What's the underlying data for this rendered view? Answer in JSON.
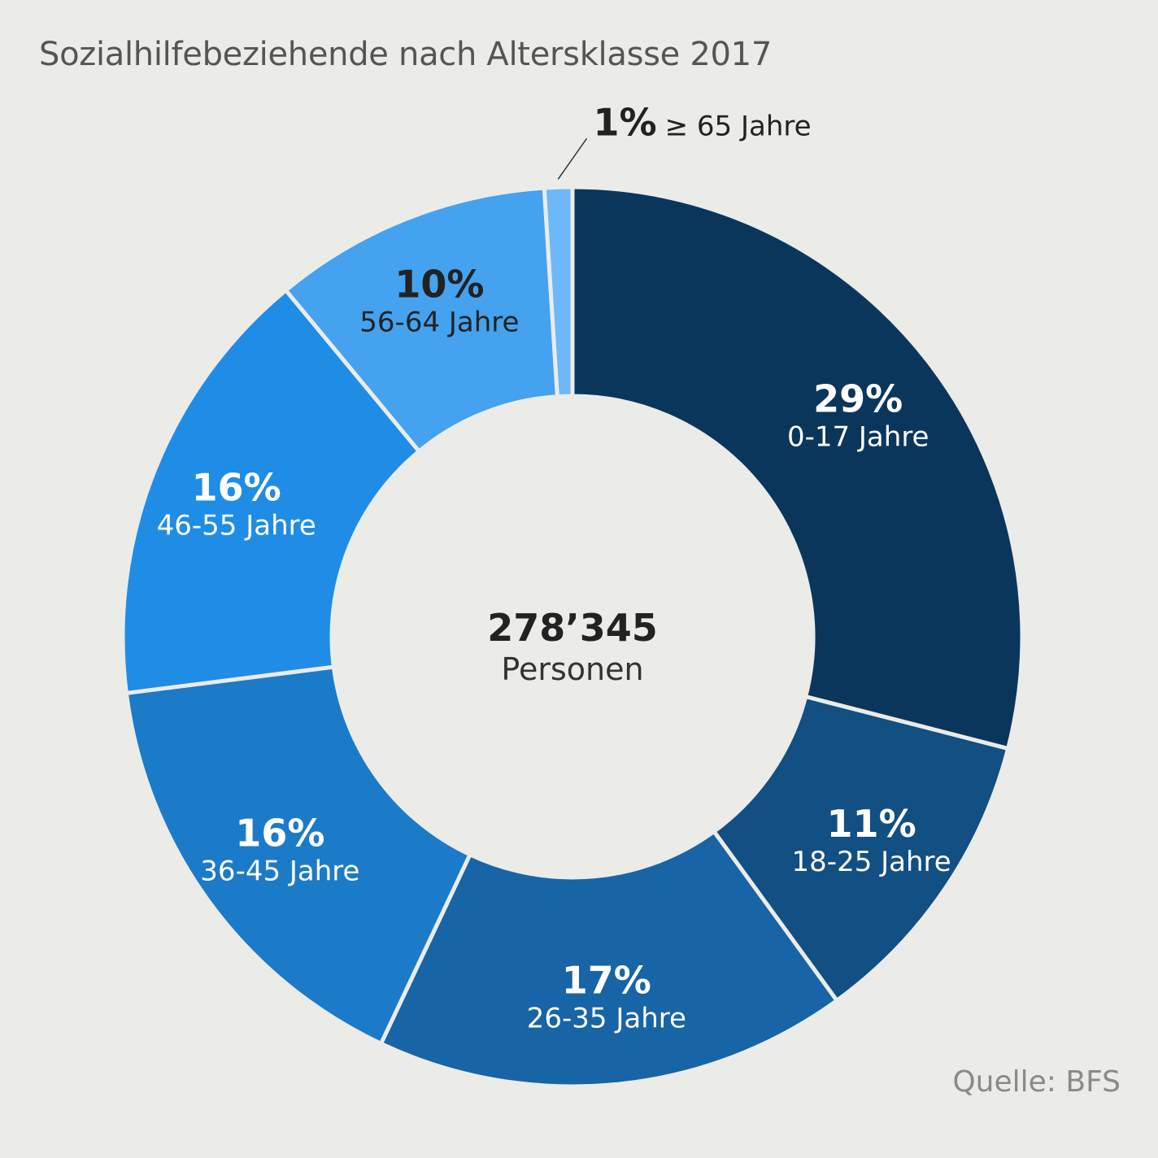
{
  "title": "Sozialhilfebeziehende nach Altersklasse 2017",
  "source": "Quelle: BFS",
  "center": {
    "value": "278’345",
    "unit": "Personen"
  },
  "chart_data": {
    "type": "pie",
    "variant": "donut",
    "title": "Sozialhilfebeziehende nach Altersklasse 2017",
    "slices": [
      {
        "label": "0-17 Jahre",
        "value": 29,
        "value_label": "29%",
        "color": "#0b365c",
        "text_color": "#ffffff"
      },
      {
        "label": "18-25 Jahre",
        "value": 11,
        "value_label": "11%",
        "color": "#124f82",
        "text_color": "#ffffff"
      },
      {
        "label": "26-35 Jahre",
        "value": 17,
        "value_label": "17%",
        "color": "#1764a6",
        "text_color": "#ffffff"
      },
      {
        "label": "36-45 Jahre",
        "value": 16,
        "value_label": "16%",
        "color": "#1c7bc8",
        "text_color": "#ffffff"
      },
      {
        "label": "46-55 Jahre",
        "value": 16,
        "value_label": "16%",
        "color": "#1f8de5",
        "text_color": "#ffffff"
      },
      {
        "label": "56-64 Jahre",
        "value": 10,
        "value_label": "10%",
        "color": "#44a2ef",
        "text_color": "#222222"
      },
      {
        "label": "≥ 65 Jahre",
        "value": 1,
        "value_label": "1%",
        "color": "#6cb8f8",
        "text_color": "#222222",
        "label_outside": true
      }
    ]
  }
}
